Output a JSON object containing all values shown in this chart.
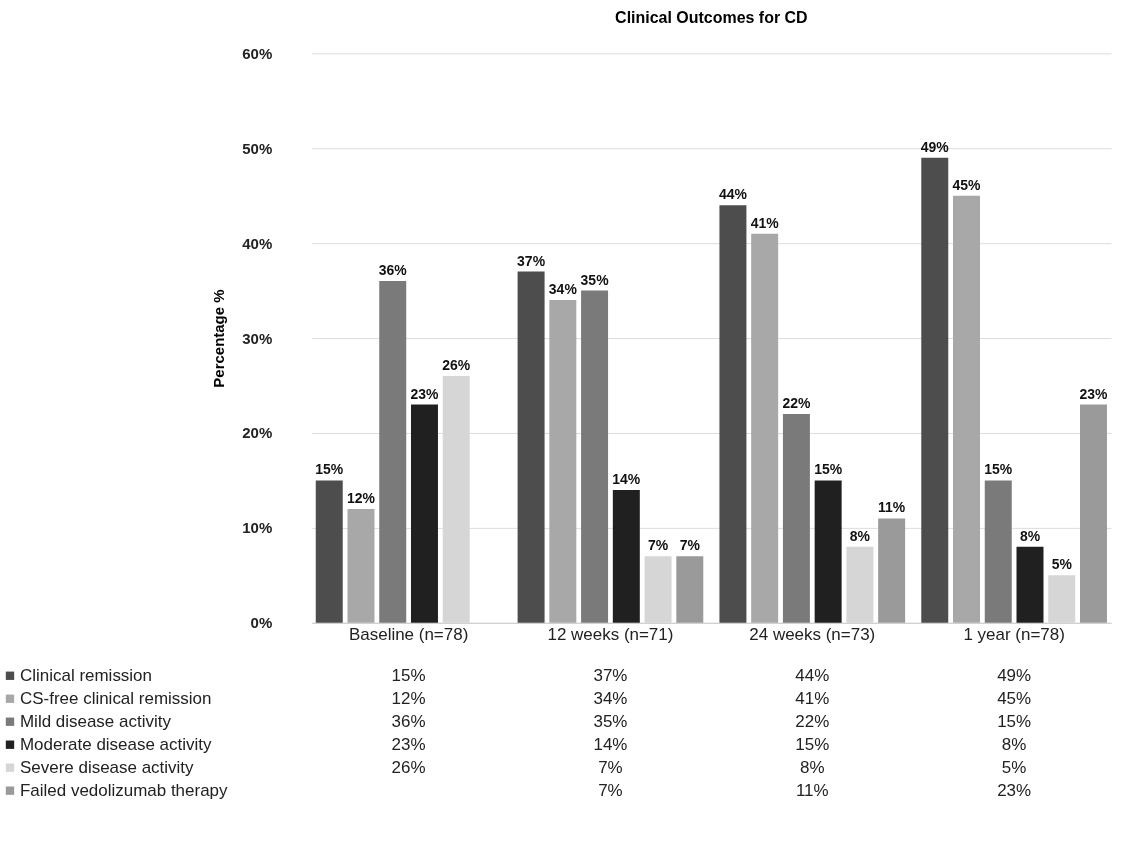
{
  "chart_data": {
    "type": "bar",
    "title": "Clinical Outcomes for CD",
    "ylabel": "Percentage %",
    "categories": [
      "Baseline (n=78)",
      "12 weeks (n=71)",
      "24 weeks (n=73)",
      "1 year (n=78)"
    ],
    "series": [
      {
        "name": "Clinical remission",
        "color": "#4d4d4d",
        "values": [
          15,
          37,
          44,
          49
        ],
        "value_labels": [
          "15%",
          "37%",
          "44%",
          "49%"
        ]
      },
      {
        "name": "CS-free clinical remission",
        "color": "#a8a8a8",
        "values": [
          12,
          34,
          41,
          45
        ],
        "value_labels": [
          "12%",
          "34%",
          "41%",
          "45%"
        ]
      },
      {
        "name": "Mild disease activity",
        "color": "#7a7a7a",
        "values": [
          36,
          35,
          22,
          15
        ],
        "value_labels": [
          "36%",
          "35%",
          "22%",
          "15%"
        ]
      },
      {
        "name": "Moderate disease activity",
        "color": "#202020",
        "values": [
          23,
          14,
          15,
          8
        ],
        "value_labels": [
          "23%",
          "14%",
          "15%",
          "8%"
        ]
      },
      {
        "name": "Severe disease activity",
        "color": "#d6d6d6",
        "values": [
          26,
          7,
          8,
          5
        ],
        "value_labels": [
          "26%",
          "7%",
          "8%",
          "5%"
        ]
      },
      {
        "name": "Failed vedolizumab therapy",
        "color": "#9a9a9a",
        "values": [
          null,
          7,
          11,
          23
        ],
        "value_labels": [
          null,
          "7%",
          "11%",
          "23%"
        ]
      }
    ],
    "ylim": [
      0,
      60
    ],
    "yticks": [
      {
        "value": 0,
        "label": "0%"
      },
      {
        "value": 10,
        "label": "10%"
      },
      {
        "value": 20,
        "label": "20%"
      },
      {
        "value": 30,
        "label": "30%"
      },
      {
        "value": 40,
        "label": "40%"
      },
      {
        "value": 50,
        "label": "50%"
      },
      {
        "value": 60,
        "label": "60%"
      }
    ],
    "grid": "y",
    "legend": "bottom"
  }
}
